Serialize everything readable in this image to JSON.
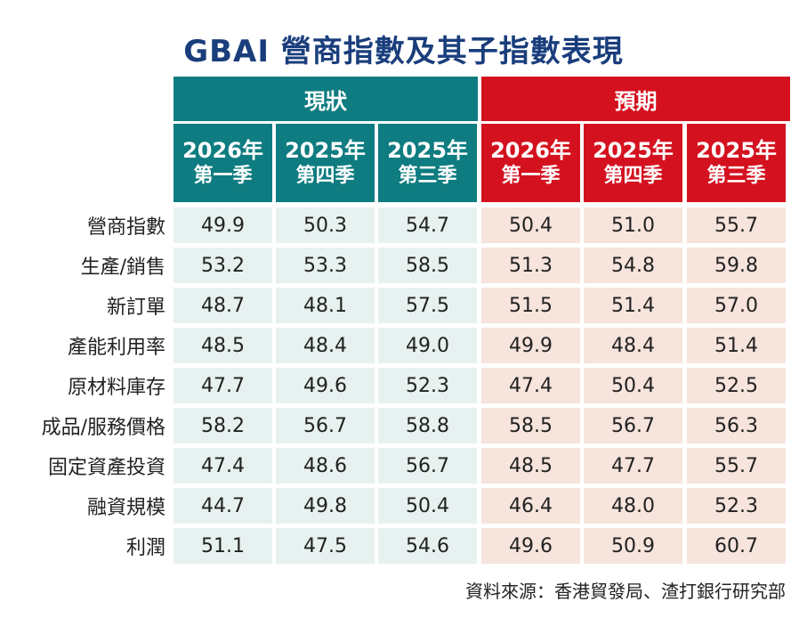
{
  "title": "GBAI 營商指數及其子指數表現",
  "groups": {
    "current": "現狀",
    "expected": "預期"
  },
  "columns": [
    {
      "year": "2026年",
      "quarter": "第一季"
    },
    {
      "year": "2025年",
      "quarter": "第四季"
    },
    {
      "year": "2025年",
      "quarter": "第三季"
    },
    {
      "year": "2026年",
      "quarter": "第一季"
    },
    {
      "year": "2025年",
      "quarter": "第四季"
    },
    {
      "year": "2025年",
      "quarter": "第三季"
    }
  ],
  "chart_data": {
    "type": "table",
    "title": "GBAI 營商指數及其子指數表現",
    "column_groups": [
      {
        "name": "現狀",
        "columns": [
          "2026年 第一季",
          "2025年 第四季",
          "2025年 第三季"
        ]
      },
      {
        "name": "預期",
        "columns": [
          "2026年 第一季",
          "2025年 第四季",
          "2025年 第三季"
        ]
      }
    ],
    "rows": [
      {
        "label": "營商指數",
        "values": [
          "49.9",
          "50.3",
          "54.7",
          "50.4",
          "51.0",
          "55.7"
        ]
      },
      {
        "label": "生產/銷售",
        "values": [
          "53.2",
          "53.3",
          "58.5",
          "51.3",
          "54.8",
          "59.8"
        ]
      },
      {
        "label": "新訂單",
        "values": [
          "48.7",
          "48.1",
          "57.5",
          "51.5",
          "51.4",
          "57.0"
        ]
      },
      {
        "label": "產能利用率",
        "values": [
          "48.5",
          "48.4",
          "49.0",
          "49.9",
          "48.4",
          "51.4"
        ]
      },
      {
        "label": "原材料庫存",
        "values": [
          "47.7",
          "49.6",
          "52.3",
          "47.4",
          "50.4",
          "52.5"
        ]
      },
      {
        "label": "成品/服務價格",
        "values": [
          "58.2",
          "56.7",
          "58.8",
          "58.5",
          "56.7",
          "56.3"
        ]
      },
      {
        "label": "固定資產投資",
        "values": [
          "47.4",
          "48.6",
          "56.7",
          "48.5",
          "47.7",
          "55.7"
        ]
      },
      {
        "label": "融資規模",
        "values": [
          "44.7",
          "49.8",
          "50.4",
          "46.4",
          "48.0",
          "52.3"
        ]
      },
      {
        "label": "利潤",
        "values": [
          "51.1",
          "47.5",
          "54.6",
          "49.6",
          "50.9",
          "60.7"
        ]
      }
    ]
  },
  "source": "資料來源：香港貿發局、渣打銀行研究部",
  "colors": {
    "title": "#1a3e7c",
    "current_header": "#0e7c80",
    "expected_header": "#d4121f",
    "current_cell": "#e7f1f0",
    "expected_cell": "#f7e4dc"
  }
}
